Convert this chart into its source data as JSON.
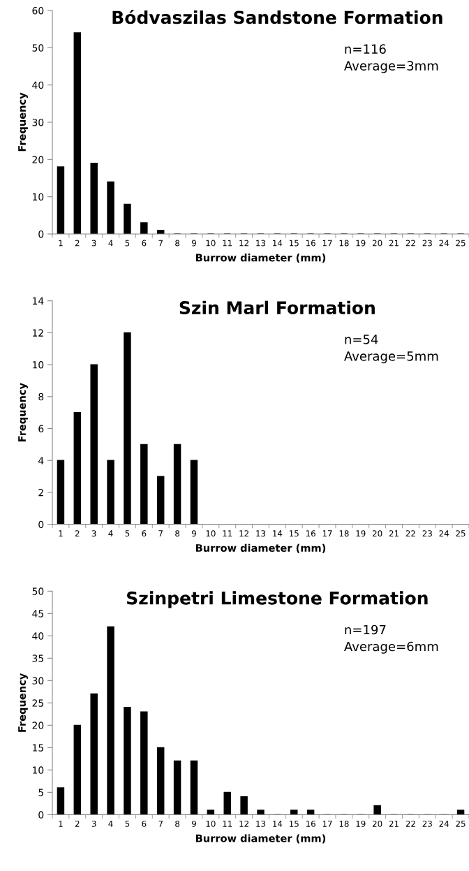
{
  "chart_data": [
    {
      "type": "bar",
      "title": "Bódvaszilas Sandstone Formation",
      "xlabel": "Burrow diameter (mm)",
      "ylabel": "Frequency",
      "annotations": [
        "n=116",
        "Average=3mm"
      ],
      "categories": [
        "1",
        "2",
        "3",
        "4",
        "5",
        "6",
        "7",
        "8",
        "9",
        "10",
        "11",
        "12",
        "13",
        "14",
        "15",
        "16",
        "17",
        "18",
        "19",
        "20",
        "21",
        "22",
        "23",
        "24",
        "25"
      ],
      "values": [
        18,
        54,
        19,
        14,
        8,
        3,
        1,
        0,
        0,
        0,
        0,
        0,
        0,
        0,
        0,
        0,
        0,
        0,
        0,
        0,
        0,
        0,
        0,
        0,
        0
      ],
      "color": "#000000",
      "ylim": [
        0,
        60
      ],
      "yticks": [
        0,
        10,
        20,
        30,
        40,
        50,
        60
      ],
      "grid": false,
      "legend": false
    },
    {
      "type": "bar",
      "title": "Szin Marl Formation",
      "xlabel": "Burrow diameter (mm)",
      "ylabel": "Frequency",
      "annotations": [
        "n=54",
        "Average=5mm"
      ],
      "categories": [
        "1",
        "2",
        "3",
        "4",
        "5",
        "6",
        "7",
        "8",
        "9",
        "10",
        "11",
        "12",
        "13",
        "14",
        "15",
        "16",
        "17",
        "18",
        "19",
        "20",
        "21",
        "22",
        "23",
        "24",
        "25"
      ],
      "values": [
        4,
        7,
        10,
        4,
        12,
        5,
        3,
        5,
        4,
        0,
        0,
        0,
        0,
        0,
        0,
        0,
        0,
        0,
        0,
        0,
        0,
        0,
        0,
        0,
        0
      ],
      "color": "#000000",
      "ylim": [
        0,
        14
      ],
      "yticks": [
        0,
        2,
        4,
        6,
        8,
        10,
        12,
        14
      ],
      "grid": false,
      "legend": false
    },
    {
      "type": "bar",
      "title": "Szinpetri Limestone Formation",
      "xlabel": "Burrow diameter (mm)",
      "ylabel": "Frequency",
      "annotations": [
        "n=197",
        "Average=6mm"
      ],
      "categories": [
        "1",
        "2",
        "3",
        "4",
        "5",
        "6",
        "7",
        "8",
        "9",
        "10",
        "11",
        "12",
        "13",
        "14",
        "15",
        "16",
        "17",
        "18",
        "19",
        "20",
        "21",
        "22",
        "23",
        "24",
        "25"
      ],
      "values": [
        6,
        20,
        27,
        42,
        24,
        23,
        15,
        12,
        12,
        1,
        5,
        4,
        1,
        0,
        1,
        1,
        0,
        0,
        0,
        2,
        0,
        0,
        0,
        0,
        1
      ],
      "color": "#000000",
      "ylim": [
        0,
        50
      ],
      "yticks": [
        0,
        5,
        10,
        15,
        20,
        25,
        30,
        35,
        40,
        45,
        50
      ],
      "grid": false,
      "legend": false
    }
  ]
}
